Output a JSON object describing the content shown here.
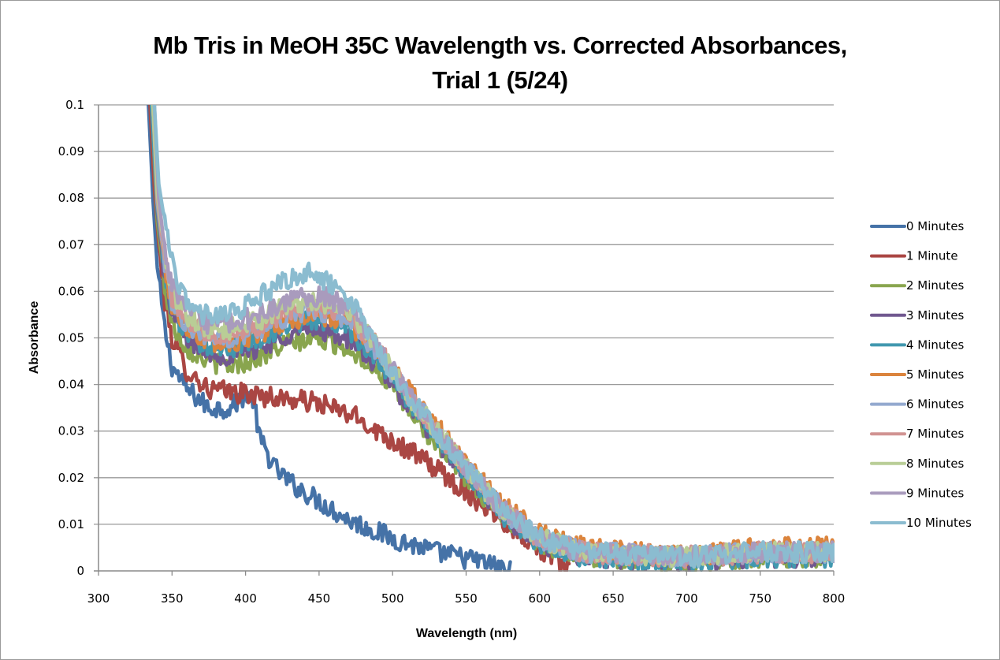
{
  "chart_data": {
    "type": "line",
    "title_line1": "Mb Tris in MeOH 35C Wavelength vs. Corrected Absorbances,",
    "title_line2": "Trial 1 (5/24)",
    "xlabel": "Wavelength (nm)",
    "ylabel": "Absorbance",
    "xlim": [
      300,
      800
    ],
    "ylim": [
      0,
      0.1
    ],
    "xticks": [
      300,
      350,
      400,
      450,
      500,
      550,
      600,
      650,
      700,
      750,
      800
    ],
    "yticks": [
      0,
      0.01,
      0.02,
      0.03,
      0.04,
      0.05,
      0.06,
      0.07,
      0.08,
      0.09,
      0.1
    ],
    "xtick_labels": [
      "300",
      "350",
      "400",
      "450",
      "500",
      "550",
      "600",
      "650",
      "700",
      "750",
      "800"
    ],
    "ytick_labels": [
      "0",
      "0.01",
      "0.02",
      "0.03",
      "0.04",
      "0.05",
      "0.06",
      "0.07",
      "0.08",
      "0.09",
      "0.1"
    ],
    "grid": "horizontal",
    "legend_position": "right",
    "series": [
      {
        "name": "0 Minutes",
        "color": "#4572A7",
        "x": [
          334,
          337,
          340,
          345,
          350,
          360,
          375,
          390,
          400,
          405,
          410,
          420,
          430,
          450,
          470,
          500,
          530,
          560,
          580
        ],
        "y": [
          0.1,
          0.08,
          0.065,
          0.052,
          0.044,
          0.039,
          0.035,
          0.035,
          0.038,
          0.037,
          0.028,
          0.022,
          0.019,
          0.015,
          0.011,
          0.007,
          0.004,
          0.002,
          0.0
        ]
      },
      {
        "name": "1 Minute",
        "color": "#AA4643",
        "x": [
          335,
          338,
          341,
          345,
          350,
          360,
          375,
          400,
          425,
          450,
          475,
          500,
          525,
          550,
          575,
          600,
          620
        ],
        "y": [
          0.1,
          0.082,
          0.07,
          0.058,
          0.05,
          0.043,
          0.039,
          0.038,
          0.037,
          0.036,
          0.033,
          0.028,
          0.023,
          0.017,
          0.011,
          0.005,
          0.0
        ]
      },
      {
        "name": "2 Minutes",
        "color": "#89A54E",
        "x": [
          336,
          340,
          345,
          350,
          360,
          375,
          390,
          410,
          430,
          450,
          470,
          490,
          510,
          530,
          550,
          575,
          600,
          630,
          700,
          750,
          800
        ],
        "y": [
          0.1,
          0.075,
          0.061,
          0.053,
          0.048,
          0.045,
          0.044,
          0.046,
          0.049,
          0.05,
          0.048,
          0.043,
          0.035,
          0.027,
          0.02,
          0.012,
          0.006,
          0.003,
          0.002,
          0.003,
          0.003
        ]
      },
      {
        "name": "3 Minutes",
        "color": "#71588F",
        "x": [
          336,
          340,
          345,
          350,
          360,
          375,
          390,
          410,
          430,
          450,
          470,
          490,
          510,
          530,
          550,
          575,
          600,
          630,
          700,
          750,
          800
        ],
        "y": [
          0.1,
          0.077,
          0.063,
          0.055,
          0.05,
          0.047,
          0.046,
          0.048,
          0.051,
          0.052,
          0.05,
          0.044,
          0.036,
          0.028,
          0.021,
          0.012,
          0.006,
          0.003,
          0.002,
          0.003,
          0.003
        ]
      },
      {
        "name": "4 Minutes",
        "color": "#4198AF",
        "x": [
          336,
          340,
          345,
          350,
          360,
          375,
          390,
          410,
          430,
          450,
          470,
          490,
          510,
          530,
          550,
          575,
          600,
          630,
          700,
          750,
          800
        ],
        "y": [
          0.1,
          0.078,
          0.064,
          0.056,
          0.051,
          0.048,
          0.048,
          0.05,
          0.053,
          0.054,
          0.052,
          0.045,
          0.037,
          0.029,
          0.021,
          0.012,
          0.006,
          0.003,
          0.002,
          0.003,
          0.003
        ]
      },
      {
        "name": "5 Minutes",
        "color": "#DB843D",
        "x": [
          337,
          340,
          345,
          350,
          360,
          375,
          390,
          410,
          430,
          450,
          470,
          490,
          510,
          530,
          550,
          575,
          600,
          630,
          700,
          750,
          800
        ],
        "y": [
          0.1,
          0.079,
          0.065,
          0.057,
          0.052,
          0.049,
          0.049,
          0.051,
          0.054,
          0.055,
          0.053,
          0.047,
          0.039,
          0.031,
          0.023,
          0.014,
          0.008,
          0.005,
          0.003,
          0.005,
          0.005
        ]
      },
      {
        "name": "6 Minutes",
        "color": "#93A9CF",
        "x": [
          337,
          340,
          345,
          350,
          360,
          375,
          390,
          410,
          430,
          450,
          470,
          490,
          510,
          530,
          550,
          575,
          600,
          630,
          700,
          750,
          800
        ],
        "y": [
          0.1,
          0.079,
          0.066,
          0.058,
          0.053,
          0.05,
          0.05,
          0.052,
          0.055,
          0.056,
          0.054,
          0.047,
          0.038,
          0.03,
          0.022,
          0.013,
          0.007,
          0.004,
          0.003,
          0.004,
          0.004
        ]
      },
      {
        "name": "7 Minutes",
        "color": "#D19392",
        "x": [
          337,
          340,
          345,
          350,
          360,
          375,
          390,
          410,
          430,
          450,
          470,
          490,
          510,
          530,
          550,
          575,
          600,
          630,
          700,
          750,
          800
        ],
        "y": [
          0.1,
          0.08,
          0.067,
          0.059,
          0.054,
          0.051,
          0.051,
          0.053,
          0.056,
          0.057,
          0.055,
          0.048,
          0.038,
          0.03,
          0.022,
          0.013,
          0.007,
          0.004,
          0.003,
          0.004,
          0.004
        ]
      },
      {
        "name": "8 Minutes",
        "color": "#B9CD96",
        "x": [
          337,
          340,
          345,
          350,
          360,
          375,
          390,
          410,
          430,
          450,
          470,
          490,
          510,
          530,
          550,
          575,
          600,
          630,
          700,
          750,
          800
        ],
        "y": [
          0.1,
          0.081,
          0.068,
          0.06,
          0.055,
          0.052,
          0.052,
          0.054,
          0.057,
          0.058,
          0.056,
          0.048,
          0.038,
          0.03,
          0.022,
          0.013,
          0.007,
          0.004,
          0.003,
          0.004,
          0.004
        ]
      },
      {
        "name": "9 Minutes",
        "color": "#A99BBD",
        "x": [
          338,
          341,
          345,
          350,
          360,
          375,
          390,
          410,
          430,
          450,
          470,
          490,
          510,
          530,
          550,
          575,
          600,
          630,
          700,
          750,
          800
        ],
        "y": [
          0.1,
          0.08,
          0.069,
          0.061,
          0.056,
          0.053,
          0.053,
          0.055,
          0.058,
          0.059,
          0.057,
          0.048,
          0.038,
          0.03,
          0.022,
          0.013,
          0.007,
          0.004,
          0.003,
          0.004,
          0.004
        ]
      },
      {
        "name": "10 Minutes",
        "color": "#8BBCD0",
        "x": [
          338,
          341,
          345,
          350,
          355,
          370,
          390,
          410,
          430,
          445,
          460,
          475,
          490,
          510,
          530,
          550,
          575,
          600,
          630,
          700,
          750,
          800
        ],
        "y": [
          0.1,
          0.083,
          0.075,
          0.066,
          0.06,
          0.055,
          0.055,
          0.059,
          0.063,
          0.064,
          0.061,
          0.056,
          0.047,
          0.038,
          0.03,
          0.022,
          0.013,
          0.007,
          0.004,
          0.003,
          0.004,
          0.004
        ]
      }
    ]
  }
}
